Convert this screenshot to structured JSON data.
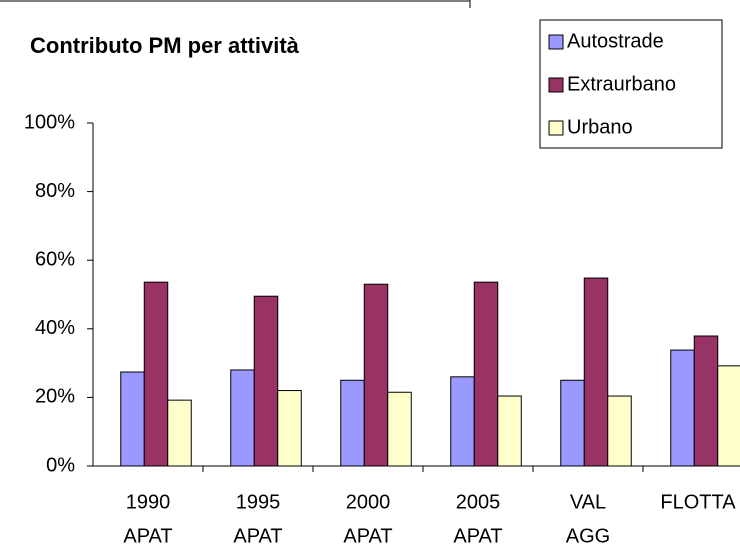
{
  "chart_data": {
    "type": "bar",
    "title": "Contributo PM per attività",
    "categories": [
      [
        "1990",
        "APAT"
      ],
      [
        "1995",
        "APAT"
      ],
      [
        "2000",
        "APAT"
      ],
      [
        "2005",
        "APAT"
      ],
      [
        "VAL",
        "AGG"
      ],
      [
        "FLOTTA"
      ]
    ],
    "series": [
      {
        "name": "Autostrade",
        "color": "#9999ff",
        "values": [
          27.4,
          28,
          25,
          26,
          25,
          33.8
        ]
      },
      {
        "name": "Extraurbano",
        "color": "#993366",
        "values": [
          53.6,
          49.5,
          53,
          53.6,
          54.8,
          37.9
        ]
      },
      {
        "name": "Urbano",
        "color": "#ffffcc",
        "values": [
          19.2,
          22,
          21.5,
          20.4,
          20.4,
          29.2
        ]
      }
    ],
    "ylim": [
      0,
      100
    ],
    "yticks": [
      {
        "value": 0,
        "label": "0%"
      },
      {
        "value": 20,
        "label": "20%"
      },
      {
        "value": 40,
        "label": "40%"
      },
      {
        "value": 60,
        "label": "60%"
      },
      {
        "value": 80,
        "label": "80%"
      },
      {
        "value": 100,
        "label": "100%"
      }
    ],
    "grid": false,
    "legend": "top-right"
  }
}
